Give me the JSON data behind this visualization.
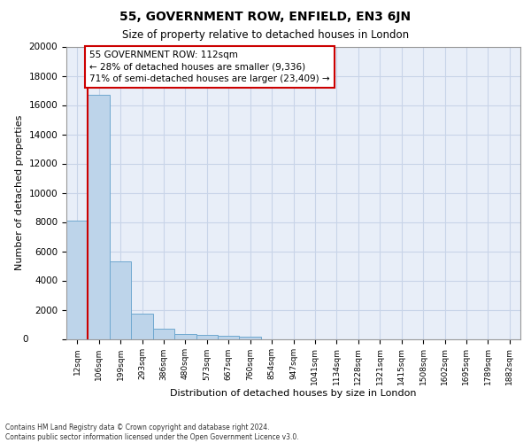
{
  "title_main": "55, GOVERNMENT ROW, ENFIELD, EN3 6JN",
  "title_sub": "Size of property relative to detached houses in London",
  "xlabel": "Distribution of detached houses by size in London",
  "ylabel": "Number of detached properties",
  "categories": [
    "12sqm",
    "106sqm",
    "199sqm",
    "293sqm",
    "386sqm",
    "480sqm",
    "573sqm",
    "667sqm",
    "760sqm",
    "854sqm",
    "947sqm",
    "1041sqm",
    "1134sqm",
    "1228sqm",
    "1321sqm",
    "1415sqm",
    "1508sqm",
    "1602sqm",
    "1695sqm",
    "1789sqm",
    "1882sqm"
  ],
  "values": [
    8100,
    16700,
    5300,
    1750,
    700,
    350,
    250,
    200,
    150,
    0,
    0,
    0,
    0,
    0,
    0,
    0,
    0,
    0,
    0,
    0,
    0
  ],
  "bar_color": "#bdd4ea",
  "bar_edge_color": "#6fa8d0",
  "highlight_line_color": "#cc0000",
  "annotation_box_text": "55 GOVERNMENT ROW: 112sqm\n← 28% of detached houses are smaller (9,336)\n71% of semi-detached houses are larger (23,409) →",
  "annotation_box_color": "#cc0000",
  "ylim": [
    0,
    20000
  ],
  "yticks": [
    0,
    2000,
    4000,
    6000,
    8000,
    10000,
    12000,
    14000,
    16000,
    18000,
    20000
  ],
  "grid_color": "#c8d4e8",
  "bg_color": "#e8eef8",
  "footer_line1": "Contains HM Land Registry data © Crown copyright and database right 2024.",
  "footer_line2": "Contains public sector information licensed under the Open Government Licence v3.0."
}
